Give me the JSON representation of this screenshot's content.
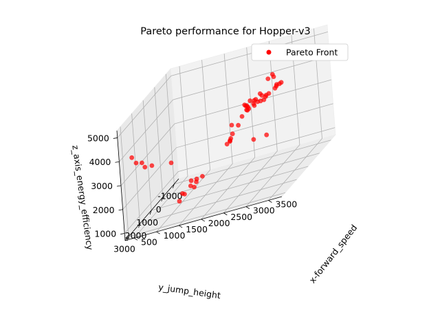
{
  "chart_data": {
    "type": "scatter",
    "title": "Pareto performance for Hopper-v3",
    "xlabel": "x-forward_speed",
    "ylabel": "y_jump_height",
    "zlabel": "z_axis_energy_efficiency",
    "xlim": [
      300,
      3800
    ],
    "ylim": [
      -1400,
      3300
    ],
    "zlim": [
      700,
      5300
    ],
    "xticks": [
      500,
      1000,
      1500,
      2000,
      2500,
      3000,
      3500
    ],
    "yticks": [
      -1000,
      0,
      1000,
      2000,
      3000
    ],
    "zticks": [
      1000,
      2000,
      3000,
      4000,
      5000
    ],
    "legend": "top-right",
    "grid": true,
    "color": "#ff0000",
    "series": [
      {
        "name": "Pareto Front",
        "points": [
          [
            3500,
            2600,
            5400
          ],
          [
            3550,
            2400,
            5450
          ],
          [
            3600,
            2500,
            5380
          ],
          [
            500,
            3000,
            3900
          ],
          [
            600,
            3050,
            3650
          ],
          [
            700,
            2950,
            3550
          ],
          [
            800,
            3100,
            3400
          ],
          [
            900,
            2900,
            3300
          ],
          [
            1300,
            2800,
            3150
          ],
          [
            2800,
            1600,
            4300
          ],
          [
            2900,
            1500,
            4250
          ],
          [
            2850,
            1450,
            4200
          ],
          [
            2950,
            1300,
            4350
          ],
          [
            3000,
            1350,
            4280
          ],
          [
            3050,
            1250,
            4150
          ],
          [
            3100,
            1150,
            4200
          ],
          [
            3050,
            1400,
            4100
          ],
          [
            2950,
            1550,
            4150
          ],
          [
            2900,
            1700,
            4180
          ],
          [
            2800,
            1750,
            4050
          ],
          [
            3000,
            1000,
            4100
          ],
          [
            3150,
            800,
            4200
          ],
          [
            3200,
            600,
            4250
          ],
          [
            3100,
            500,
            4150
          ],
          [
            2700,
            1500,
            3900
          ],
          [
            2600,
            1200,
            3800
          ],
          [
            2750,
            1100,
            3850
          ],
          [
            2500,
            700,
            3700
          ],
          [
            2450,
            600,
            3720
          ],
          [
            2400,
            500,
            3690
          ],
          [
            2350,
            400,
            3700
          ],
          [
            2250,
            1200,
            3350
          ],
          [
            2300,
            500,
            3300
          ],
          [
            2200,
            1000,
            2900
          ],
          [
            2150,
            300,
            2900
          ],
          [
            2100,
            800,
            2650
          ],
          [
            2050,
            700,
            2500
          ],
          [
            2000,
            500,
            2450
          ],
          [
            1900,
            400,
            2300
          ],
          [
            1600,
            2200,
            1650
          ],
          [
            2300,
            -300,
            1900
          ],
          [
            2400,
            -1000,
            1650
          ],
          [
            1200,
            0,
            1100
          ],
          [
            900,
            -100,
            800
          ],
          [
            950,
            -400,
            780
          ],
          [
            700,
            -300,
            450
          ],
          [
            800,
            -1000,
            650
          ],
          [
            650,
            -1100,
            600
          ],
          [
            600,
            -500,
            420
          ],
          [
            550,
            -400,
            180
          ],
          [
            3300,
            1200,
            4500
          ],
          [
            3350,
            1000,
            4450
          ],
          [
            2650,
            200,
            3600
          ]
        ]
      }
    ]
  }
}
